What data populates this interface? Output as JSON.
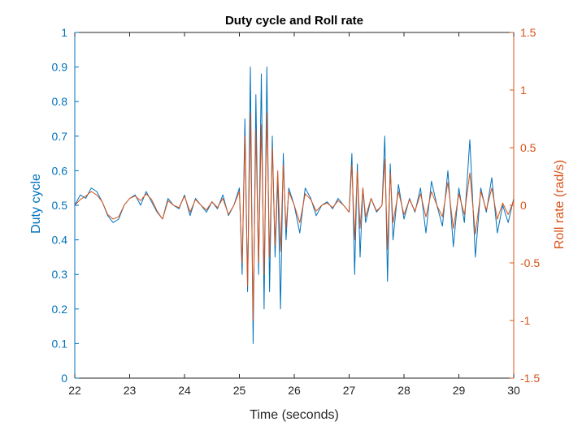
{
  "chart_data": {
    "type": "line",
    "title": "Duty cycle and Roll rate",
    "xlabel": "Time (seconds)",
    "ylabel_left": "Duty cycle",
    "ylabel_right": "Roll rate (rad/s)",
    "xlim": [
      22,
      30
    ],
    "ylim_left": [
      0,
      1
    ],
    "ylim_right": [
      -1.5,
      1.5
    ],
    "x_ticks": [
      "22",
      "23",
      "24",
      "25",
      "26",
      "27",
      "28",
      "29",
      "30"
    ],
    "y_left_ticks": [
      "0",
      "0.1",
      "0.2",
      "0.3",
      "0.4",
      "0.5",
      "0.6",
      "0.7",
      "0.8",
      "0.9",
      "1"
    ],
    "y_right_ticks": [
      "-1.5",
      "-1",
      "-0.5",
      "0",
      "0.5",
      "1",
      "1.5"
    ],
    "grid": false,
    "legend": "none",
    "colors": {
      "left_axis": "#0072BD",
      "right_axis": "#D95319"
    },
    "series": [
      {
        "axis": "left",
        "color": "#0072BD",
        "x": [
          22.0,
          22.1,
          22.2,
          22.3,
          22.4,
          22.5,
          22.6,
          22.7,
          22.8,
          22.9,
          23.0,
          23.1,
          23.2,
          23.3,
          23.4,
          23.5,
          23.6,
          23.7,
          23.8,
          23.9,
          24.0,
          24.1,
          24.2,
          24.3,
          24.4,
          24.5,
          24.6,
          24.7,
          24.8,
          24.9,
          25.0,
          25.05,
          25.1,
          25.15,
          25.2,
          25.25,
          25.3,
          25.35,
          25.4,
          25.45,
          25.5,
          25.55,
          25.6,
          25.65,
          25.7,
          25.75,
          25.8,
          25.85,
          25.9,
          26.0,
          26.1,
          26.2,
          26.3,
          26.4,
          26.5,
          26.6,
          26.7,
          26.8,
          26.9,
          27.0,
          27.05,
          27.1,
          27.15,
          27.2,
          27.25,
          27.3,
          27.4,
          27.5,
          27.6,
          27.65,
          27.7,
          27.75,
          27.8,
          27.9,
          28.0,
          28.1,
          28.2,
          28.3,
          28.4,
          28.5,
          28.6,
          28.7,
          28.8,
          28.9,
          29.0,
          29.1,
          29.2,
          29.3,
          29.4,
          29.5,
          29.6,
          29.7,
          29.8,
          29.9,
          30.0
        ],
        "y": [
          0.5,
          0.53,
          0.52,
          0.55,
          0.54,
          0.51,
          0.47,
          0.45,
          0.46,
          0.5,
          0.52,
          0.53,
          0.5,
          0.54,
          0.51,
          0.48,
          0.46,
          0.52,
          0.5,
          0.49,
          0.53,
          0.47,
          0.52,
          0.5,
          0.48,
          0.51,
          0.49,
          0.53,
          0.47,
          0.5,
          0.55,
          0.3,
          0.75,
          0.25,
          0.9,
          0.1,
          0.82,
          0.3,
          0.88,
          0.2,
          0.9,
          0.25,
          0.7,
          0.35,
          0.58,
          0.2,
          0.65,
          0.4,
          0.55,
          0.5,
          0.42,
          0.55,
          0.52,
          0.47,
          0.5,
          0.51,
          0.49,
          0.52,
          0.5,
          0.48,
          0.65,
          0.3,
          0.62,
          0.35,
          0.55,
          0.45,
          0.52,
          0.48,
          0.5,
          0.7,
          0.28,
          0.62,
          0.4,
          0.56,
          0.46,
          0.52,
          0.48,
          0.55,
          0.42,
          0.57,
          0.5,
          0.44,
          0.6,
          0.38,
          0.55,
          0.45,
          0.69,
          0.35,
          0.55,
          0.48,
          0.58,
          0.42,
          0.5,
          0.45,
          0.52
        ]
      },
      {
        "axis": "right",
        "color": "#D95319",
        "x": [
          22.0,
          22.1,
          22.2,
          22.3,
          22.4,
          22.5,
          22.6,
          22.7,
          22.8,
          22.9,
          23.0,
          23.1,
          23.2,
          23.3,
          23.4,
          23.5,
          23.6,
          23.7,
          23.8,
          23.9,
          24.0,
          24.1,
          24.2,
          24.3,
          24.4,
          24.5,
          24.6,
          24.7,
          24.8,
          24.9,
          25.0,
          25.05,
          25.1,
          25.15,
          25.2,
          25.25,
          25.3,
          25.35,
          25.4,
          25.45,
          25.5,
          25.55,
          25.6,
          25.65,
          25.7,
          25.75,
          25.8,
          25.85,
          25.9,
          26.0,
          26.1,
          26.2,
          26.3,
          26.4,
          26.5,
          26.6,
          26.7,
          26.8,
          26.9,
          27.0,
          27.05,
          27.1,
          27.15,
          27.2,
          27.25,
          27.3,
          27.4,
          27.5,
          27.6,
          27.65,
          27.7,
          27.75,
          27.8,
          27.9,
          28.0,
          28.1,
          28.2,
          28.3,
          28.4,
          28.5,
          28.6,
          28.7,
          28.8,
          28.9,
          29.0,
          29.1,
          29.2,
          29.3,
          29.4,
          29.5,
          29.6,
          29.7,
          29.8,
          29.9,
          30.0
        ],
        "y": [
          0.0,
          0.05,
          0.08,
          0.12,
          0.09,
          0.03,
          -0.08,
          -0.12,
          -0.1,
          0.0,
          0.06,
          0.08,
          0.04,
          0.1,
          0.05,
          -0.05,
          -0.12,
          0.04,
          0.0,
          -0.02,
          0.08,
          -0.06,
          0.05,
          0.0,
          -0.04,
          0.03,
          -0.02,
          0.06,
          -0.08,
          0.0,
          0.12,
          -0.5,
          0.6,
          -0.7,
          0.8,
          -1.0,
          0.65,
          -0.5,
          0.7,
          -0.6,
          0.8,
          -0.45,
          0.5,
          -0.35,
          0.3,
          -0.4,
          0.35,
          -0.2,
          0.12,
          0.0,
          -0.15,
          0.1,
          0.05,
          -0.05,
          0.0,
          0.02,
          -0.02,
          0.04,
          0.0,
          -0.06,
          0.35,
          -0.3,
          0.3,
          -0.2,
          0.15,
          -0.1,
          0.06,
          -0.05,
          0.0,
          0.4,
          -0.38,
          0.28,
          -0.15,
          0.12,
          -0.08,
          0.05,
          -0.05,
          0.1,
          -0.1,
          0.12,
          0.0,
          -0.1,
          0.2,
          -0.2,
          0.1,
          -0.08,
          0.28,
          -0.25,
          0.12,
          -0.04,
          0.15,
          -0.12,
          0.02,
          -0.08,
          0.04
        ]
      }
    ]
  }
}
